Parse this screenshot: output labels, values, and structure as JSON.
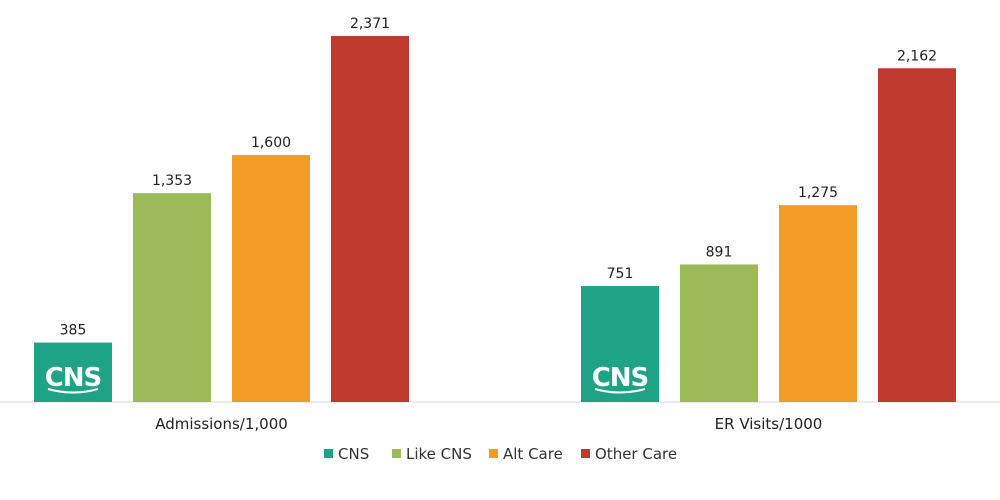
{
  "chart_data": {
    "type": "bar",
    "categories": [
      "Admissions/1,000",
      "ER Visits/1000"
    ],
    "series": [
      {
        "name": "CNS",
        "color": "#1fa387",
        "values": [
          385,
          751
        ],
        "labels": [
          "385",
          "751"
        ]
      },
      {
        "name": "Like CNS",
        "color": "#9bbb59",
        "values": [
          1353,
          891
        ],
        "labels": [
          "1,353",
          "891"
        ]
      },
      {
        "name": "Alt Care",
        "color": "#f19c24",
        "values": [
          1600,
          1275
        ],
        "labels": [
          "1,600",
          "1,275"
        ]
      },
      {
        "name": "Other Care",
        "color": "#c0392f",
        "values": [
          2371,
          2162
        ],
        "labels": [
          "2,371",
          "2,162"
        ]
      }
    ],
    "ylim": [
      0,
      2500
    ],
    "grid": false,
    "legend": "bottom",
    "logo_text": "CNS",
    "logo_series": "CNS"
  }
}
